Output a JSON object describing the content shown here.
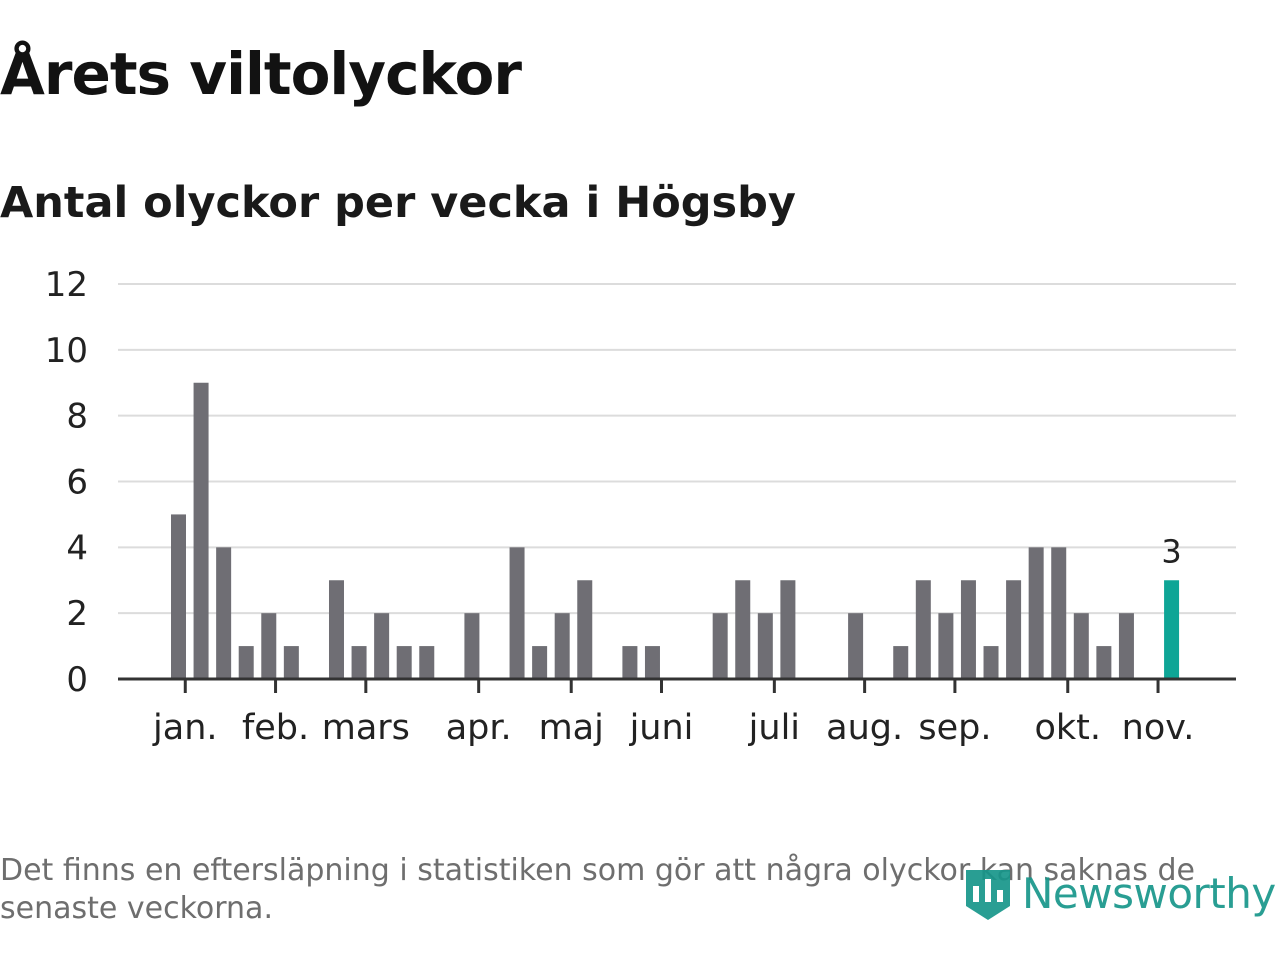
{
  "header": {
    "title": "Årets viltolyckor",
    "subtitle": "Antal olyckor per vecka i Högsby"
  },
  "footnote": "Det finns en eftersläpning i statistiken som gör att några olyckor kan saknas de senaste veckorna.",
  "brand": {
    "name": "Newsworthy",
    "icon": "newsworthy-logo-icon",
    "color": "#17968a"
  },
  "chart_data": {
    "type": "bar",
    "title": "Antal olyckor per vecka i Högsby",
    "xlabel": "",
    "ylabel": "",
    "ylim": [
      0,
      12
    ],
    "yticks": [
      0,
      2,
      4,
      6,
      8,
      10,
      12
    ],
    "grid": true,
    "legend": "none",
    "bar_color": "#6f6e74",
    "highlight_color": "#0ea596",
    "weeks": [
      1,
      2,
      3,
      4,
      5,
      6,
      7,
      8,
      9,
      10,
      11,
      12,
      13,
      14,
      15,
      16,
      17,
      18,
      19,
      20,
      21,
      22,
      23,
      24,
      25,
      26,
      27,
      28,
      29,
      30,
      31,
      32,
      33,
      34,
      35,
      36,
      37,
      38,
      39,
      40,
      41,
      42,
      43,
      44,
      45,
      46
    ],
    "values": [
      5,
      9,
      4,
      1,
      2,
      1,
      0,
      3,
      1,
      2,
      1,
      1,
      0,
      2,
      0,
      4,
      1,
      2,
      3,
      0,
      1,
      1,
      0,
      0,
      2,
      3,
      2,
      3,
      0,
      0,
      2,
      0,
      1,
      3,
      2,
      3,
      1,
      3,
      4,
      4,
      2,
      1,
      2,
      0,
      3,
      0
    ],
    "highlight_week": 45,
    "highlight_label": "3",
    "month_ticks": [
      {
        "label": "jan.",
        "week": 1.3
      },
      {
        "label": "feb.",
        "week": 5.3
      },
      {
        "label": "mars",
        "week": 9.3
      },
      {
        "label": "apr.",
        "week": 14.3
      },
      {
        "label": "maj",
        "week": 18.4
      },
      {
        "label": "juni",
        "week": 22.4
      },
      {
        "label": "juli",
        "week": 27.4
      },
      {
        "label": "aug.",
        "week": 31.4
      },
      {
        "label": "sep.",
        "week": 35.4
      },
      {
        "label": "okt.",
        "week": 40.4
      },
      {
        "label": "nov.",
        "week": 44.4
      }
    ]
  }
}
